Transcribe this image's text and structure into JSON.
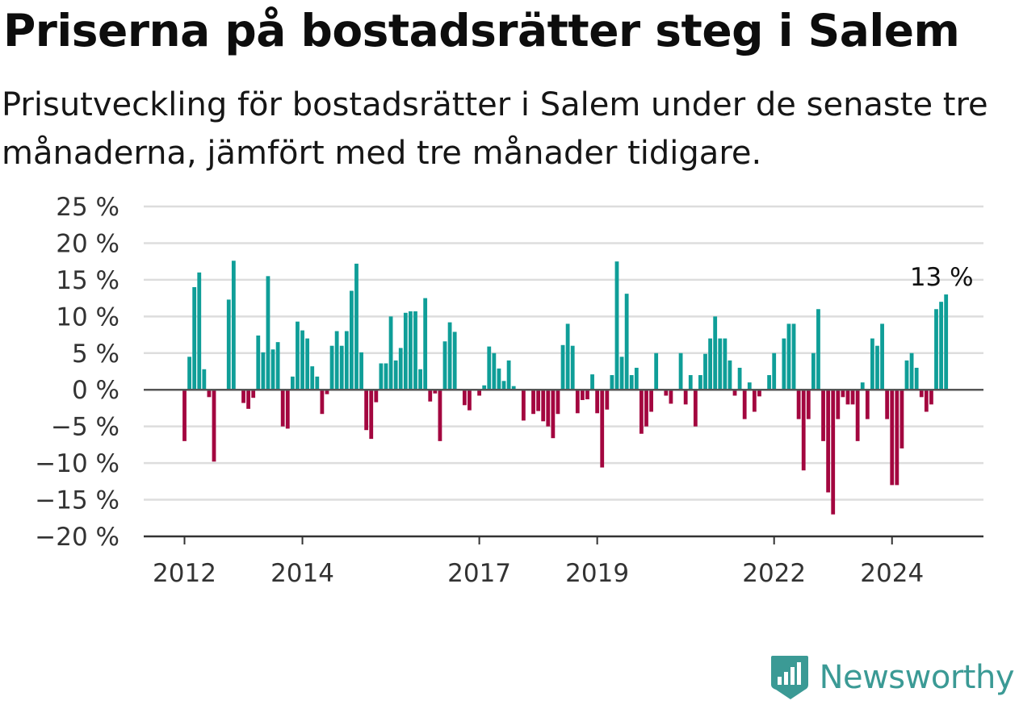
{
  "chart_data": {
    "type": "bar",
    "title": "Priserna på bostadsrätter steg i Salem",
    "subtitle": "Prisutveckling för bostadsrätter i Salem under de senaste tre månaderna, jämfört med tre månader tidigare.",
    "xlabel": "",
    "ylabel": "",
    "ylim": [
      -20,
      25
    ],
    "yticks": [
      25,
      20,
      15,
      10,
      5,
      0,
      -5,
      -10,
      -15,
      -20
    ],
    "ytick_labels": [
      "25 %",
      "20 %",
      "15 %",
      "10 %",
      "5 %",
      "0 %",
      "−5 %",
      "−10 %",
      "−15 %",
      "−20 %"
    ],
    "xticks": [
      {
        "label": "2012",
        "index": 0
      },
      {
        "label": "2014",
        "index": 24
      },
      {
        "label": "2017",
        "index": 60
      },
      {
        "label": "2019",
        "index": 84
      },
      {
        "label": "2022",
        "index": 120
      },
      {
        "label": "2024",
        "index": 144
      }
    ],
    "start": "2012-01",
    "frequency": "monthly",
    "grid": true,
    "positive_color": "#0f9e98",
    "negative_color": "#a3063f",
    "annotation": {
      "label": "13 %",
      "index": 154
    },
    "values": [
      -7.0,
      4.5,
      14.0,
      16.0,
      2.8,
      -1.0,
      -9.8,
      0,
      0,
      12.3,
      17.6,
      0,
      -1.8,
      -2.6,
      -1.1,
      7.4,
      5.1,
      15.5,
      5.5,
      6.5,
      -5.0,
      -5.3,
      1.8,
      9.3,
      8.1,
      7.0,
      3.2,
      1.8,
      -3.3,
      -0.6,
      6.0,
      8.0,
      6.0,
      8.0,
      13.5,
      17.2,
      5.1,
      -5.5,
      -6.7,
      -1.7,
      3.6,
      3.6,
      10.0,
      4.0,
      5.7,
      10.5,
      10.7,
      10.7,
      2.8,
      12.5,
      -1.6,
      -0.5,
      -7.0,
      6.6,
      9.2,
      7.9,
      0,
      -2.1,
      -2.8,
      0,
      -0.8,
      0.6,
      5.9,
      5.0,
      2.9,
      1.2,
      4.0,
      0.5,
      0,
      -4.2,
      0,
      -3.3,
      -2.9,
      -4.3,
      -5.0,
      -6.6,
      -3.3,
      6.1,
      9.0,
      6.0,
      -3.2,
      -1.4,
      -1.3,
      2.1,
      -3.2,
      -10.6,
      -2.7,
      2.0,
      17.5,
      4.5,
      13.1,
      2.0,
      3.0,
      -6.0,
      -5.0,
      -3.0,
      5.0,
      0,
      -0.8,
      -1.9,
      0,
      5.0,
      -2.0,
      2.0,
      -5.0,
      2.0,
      4.9,
      7.0,
      10.0,
      7.0,
      7.0,
      4.0,
      -0.8,
      3.0,
      -4.0,
      1.0,
      -3.0,
      -0.9,
      0,
      2.0,
      5.0,
      0,
      7.0,
      9.0,
      9.0,
      -4.0,
      -11.0,
      -4.0,
      5.0,
      11.0,
      -7.0,
      -14.0,
      -17.0,
      -4.0,
      -1.0,
      -2.0,
      -2.0,
      -7.0,
      1.0,
      -4.0,
      7.0,
      6.0,
      9.0,
      -4.0,
      -13.0,
      -13.0,
      -8.0,
      4.0,
      5.0,
      3.0,
      -1.0,
      -3.0,
      -2.0,
      11.0,
      12.0,
      13.0
    ]
  },
  "logo": {
    "name": "Newsworthy"
  }
}
